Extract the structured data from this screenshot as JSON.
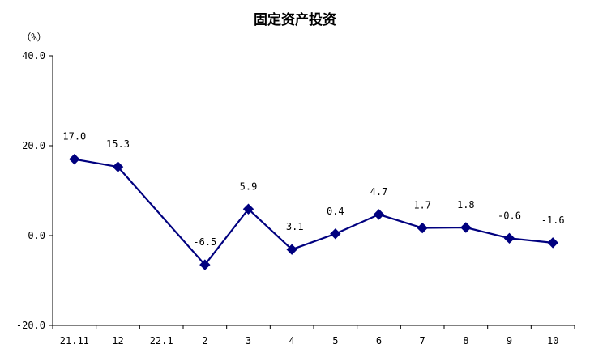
{
  "chart_data": {
    "type": "line",
    "title": "固定资产投资",
    "ylabel": "（%）",
    "xlabel": "",
    "categories": [
      "21.11",
      "12",
      "22.1",
      "2",
      "3",
      "4",
      "5",
      "6",
      "7",
      "8",
      "9",
      "10"
    ],
    "yticks": [
      "40.0",
      "20.0",
      "0.0",
      "-20.0"
    ],
    "ylim": [
      -20,
      40
    ],
    "grid": false,
    "legend": "none",
    "series": [
      {
        "values": [
          17.0,
          15.3,
          null,
          -6.5,
          5.9,
          -3.1,
          0.4,
          4.7,
          1.7,
          1.8,
          -0.6,
          -1.6
        ],
        "labels": [
          "17.0",
          "15.3",
          "",
          "-6.5",
          "5.9",
          "-3.1",
          "0.4",
          "4.7",
          "1.7",
          "1.8",
          "-0.6",
          "-1.6"
        ],
        "color": "#00007f"
      }
    ]
  }
}
